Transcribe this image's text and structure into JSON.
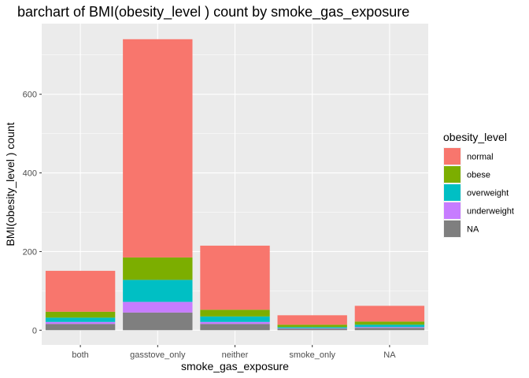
{
  "chart_data": {
    "type": "bar",
    "stacked": true,
    "title": "barchart of BMI(obesity_level ) count by smoke_gas_exposure",
    "xlabel": "smoke_gas_exposure",
    "ylabel": "BMI(obesity_level ) count",
    "ylim": [
      0,
      760
    ],
    "yticks": [
      0,
      200,
      400,
      600
    ],
    "categories": [
      "both",
      "gasstove_only",
      "neither",
      "smoke_only",
      "NA"
    ],
    "legend_title": "obesity_level",
    "legend_position": "right",
    "grid": true,
    "series": [
      {
        "name": "normal",
        "color": "#F8766D",
        "values": [
          104,
          555,
          163,
          24,
          40
        ]
      },
      {
        "name": "obese",
        "color": "#7CAE00",
        "values": [
          15,
          57,
          17,
          6,
          8
        ]
      },
      {
        "name": "overweight",
        "color": "#00BFC4",
        "values": [
          11,
          56,
          14,
          3,
          6
        ]
      },
      {
        "name": "underweight",
        "color": "#C77CFF",
        "values": [
          5,
          27,
          5,
          1,
          2
        ]
      },
      {
        "name": "NA",
        "color": "#7F7F7F",
        "values": [
          16,
          45,
          16,
          4,
          6
        ]
      }
    ]
  }
}
